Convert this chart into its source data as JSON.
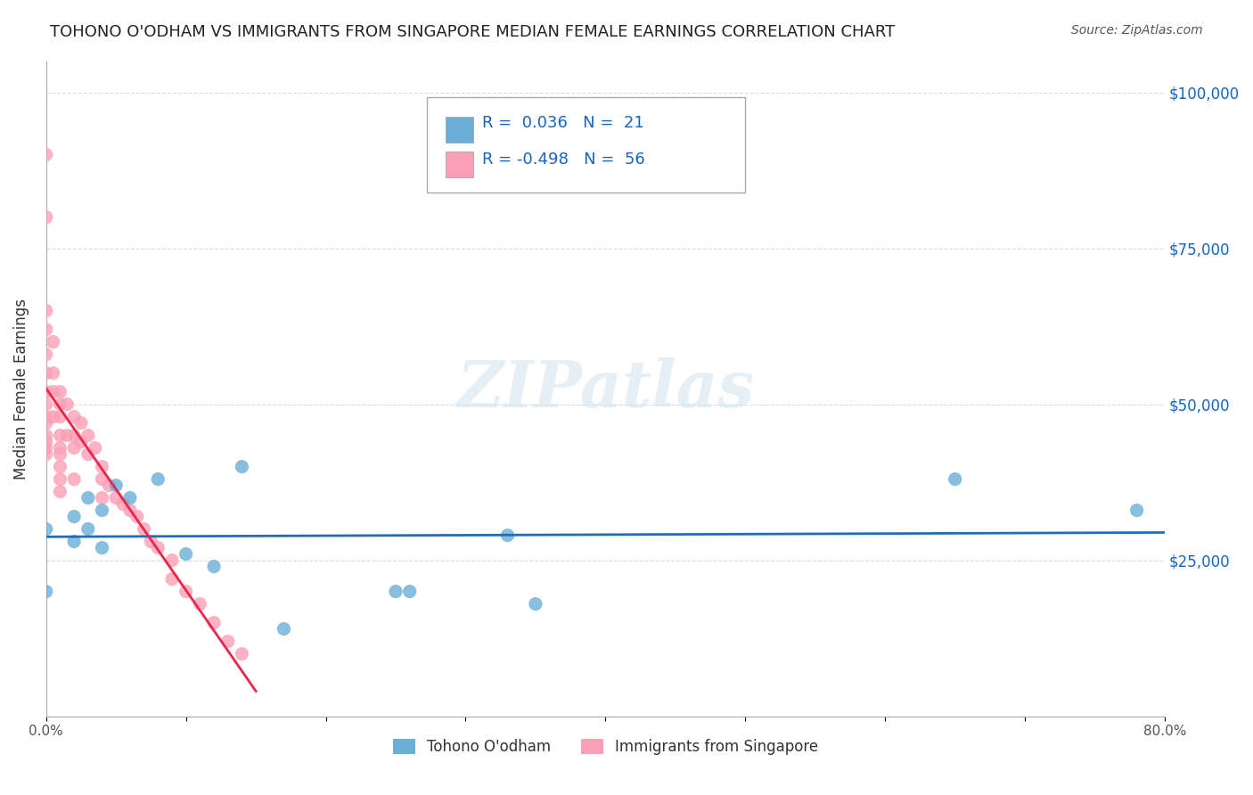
{
  "title": "TOHONO O'ODHAM VS IMMIGRANTS FROM SINGAPORE MEDIAN FEMALE EARNINGS CORRELATION CHART",
  "source": "Source: ZipAtlas.com",
  "xlabel": "",
  "ylabel": "Median Female Earnings",
  "xlim": [
    0.0,
    0.8
  ],
  "ylim": [
    0,
    105000
  ],
  "yticks": [
    0,
    25000,
    50000,
    75000,
    100000
  ],
  "ytick_labels": [
    "",
    "$25,000",
    "$50,000",
    "$75,000",
    "$100,000"
  ],
  "xticks": [
    0.0,
    0.1,
    0.2,
    0.3,
    0.4,
    0.5,
    0.6,
    0.7,
    0.8
  ],
  "xtick_labels": [
    "0.0%",
    "",
    "",
    "",
    "",
    "",
    "",
    "",
    "80.0%"
  ],
  "watermark": "ZIPatlas",
  "legend_R1": "R =  0.036",
  "legend_N1": "N =  21",
  "legend_R2": "R = -0.498",
  "legend_N2": "N =  56",
  "blue_color": "#6baed6",
  "pink_color": "#fa9fb5",
  "line_blue": "#1f6eb5",
  "line_pink": "#e8254a",
  "label1": "Tohono O'odham",
  "label2": "Immigrants from Singapore",
  "blue_x": [
    0.0,
    0.0,
    0.02,
    0.02,
    0.03,
    0.03,
    0.04,
    0.04,
    0.05,
    0.06,
    0.08,
    0.1,
    0.12,
    0.14,
    0.17,
    0.25,
    0.26,
    0.33,
    0.35,
    0.65,
    0.78
  ],
  "blue_y": [
    30000,
    20000,
    32000,
    28000,
    35000,
    30000,
    33000,
    27000,
    37000,
    35000,
    38000,
    26000,
    24000,
    40000,
    14000,
    20000,
    20000,
    29000,
    18000,
    38000,
    33000
  ],
  "pink_x": [
    0.0,
    0.0,
    0.0,
    0.0,
    0.0,
    0.0,
    0.0,
    0.0,
    0.0,
    0.0,
    0.0,
    0.0,
    0.0,
    0.0,
    0.005,
    0.005,
    0.005,
    0.005,
    0.01,
    0.01,
    0.01,
    0.01,
    0.01,
    0.01,
    0.01,
    0.01,
    0.01,
    0.015,
    0.015,
    0.02,
    0.02,
    0.02,
    0.02,
    0.025,
    0.025,
    0.03,
    0.03,
    0.035,
    0.04,
    0.04,
    0.04,
    0.045,
    0.05,
    0.055,
    0.06,
    0.065,
    0.07,
    0.075,
    0.08,
    0.09,
    0.09,
    0.1,
    0.11,
    0.12,
    0.13,
    0.14
  ],
  "pink_y": [
    90000,
    80000,
    65000,
    62000,
    58000,
    55000,
    52000,
    50000,
    48000,
    47000,
    45000,
    44000,
    43000,
    42000,
    60000,
    55000,
    52000,
    48000,
    52000,
    50000,
    48000,
    45000,
    43000,
    42000,
    40000,
    38000,
    36000,
    50000,
    45000,
    48000,
    45000,
    43000,
    38000,
    47000,
    44000,
    45000,
    42000,
    43000,
    40000,
    38000,
    35000,
    37000,
    35000,
    34000,
    33000,
    32000,
    30000,
    28000,
    27000,
    25000,
    22000,
    20000,
    18000,
    15000,
    12000,
    10000
  ]
}
